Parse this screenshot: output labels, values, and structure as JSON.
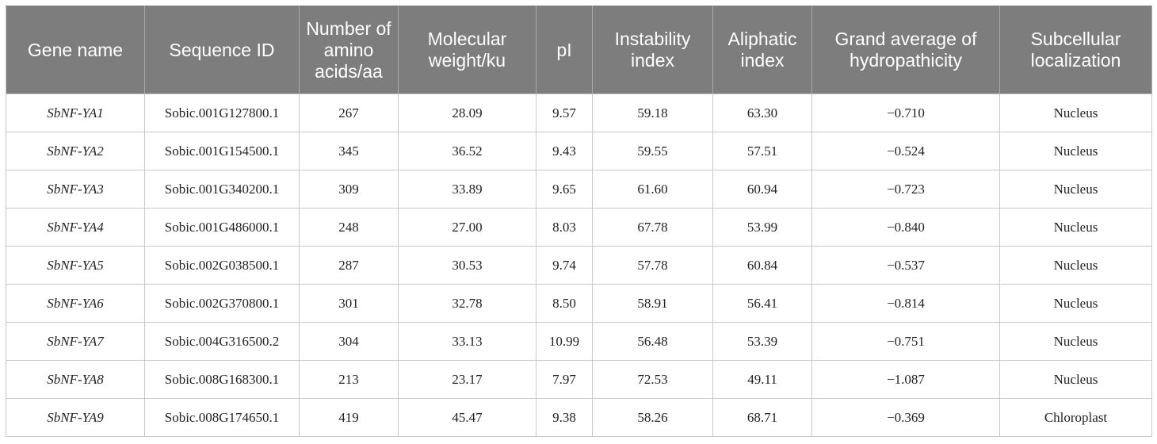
{
  "table": {
    "headers": [
      "Gene name",
      "Sequence ID",
      "Number of amino acids/aa",
      "Molecular weight/ku",
      "pI",
      "Instability index",
      "Aliphatic index",
      "Grand average of hydropathicity",
      "Subcellular localization"
    ],
    "rows": [
      [
        "SbNF-YA1",
        "Sobic.001G127800.1",
        "267",
        "28.09",
        "9.57",
        "59.18",
        "63.30",
        "−0.710",
        "Nucleus"
      ],
      [
        "SbNF-YA2",
        "Sobic.001G154500.1",
        "345",
        "36.52",
        "9.43",
        "59.55",
        "57.51",
        "−0.524",
        "Nucleus"
      ],
      [
        "SbNF-YA3",
        "Sobic.001G340200.1",
        "309",
        "33.89",
        "9.65",
        "61.60",
        "60.94",
        "−0.723",
        "Nucleus"
      ],
      [
        "SbNF-YA4",
        "Sobic.001G486000.1",
        "248",
        "27.00",
        "8.03",
        "67.78",
        "53.99",
        "−0.840",
        "Nucleus"
      ],
      [
        "SbNF-YA5",
        "Sobic.002G038500.1",
        "287",
        "30.53",
        "9.74",
        "57.78",
        "60.84",
        "−0.537",
        "Nucleus"
      ],
      [
        "SbNF-YA6",
        "Sobic.002G370800.1",
        "301",
        "32.78",
        "8.50",
        "58.91",
        "56.41",
        "−0.814",
        "Nucleus"
      ],
      [
        "SbNF-YA7",
        "Sobic.004G316500.2",
        "304",
        "33.13",
        "10.99",
        "56.48",
        "53.39",
        "−0.751",
        "Nucleus"
      ],
      [
        "SbNF-YA8",
        "Sobic.008G168300.1",
        "213",
        "23.17",
        "7.97",
        "72.53",
        "49.11",
        "−1.087",
        "Nucleus"
      ],
      [
        "SbNF-YA9",
        "Sobic.008G174650.1",
        "419",
        "45.47",
        "9.38",
        "58.26",
        "68.71",
        "−0.369",
        "Chloroplast"
      ]
    ]
  }
}
